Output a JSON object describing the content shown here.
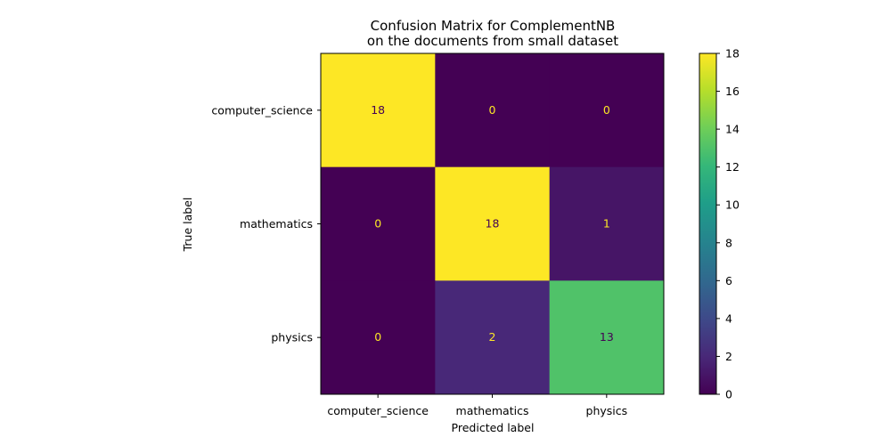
{
  "chart_data": {
    "type": "heatmap",
    "title_lines": [
      "Confusion Matrix for ComplementNB",
      "on the documents from small dataset"
    ],
    "xlabel": "Predicted label",
    "ylabel": "True label",
    "x_categories": [
      "computer_science",
      "mathematics",
      "physics"
    ],
    "y_categories": [
      "computer_science",
      "mathematics",
      "physics"
    ],
    "matrix": [
      [
        18,
        0,
        0
      ],
      [
        0,
        18,
        1
      ],
      [
        0,
        2,
        13
      ]
    ],
    "colorbar": {
      "vmin": 0,
      "vmax": 18,
      "ticks": [
        "0",
        "2",
        "4",
        "6",
        "8",
        "10",
        "12",
        "14",
        "16",
        "18"
      ],
      "colormap": "viridis"
    },
    "label_colors": {
      "light": "#fde725",
      "dark": "#440154"
    }
  }
}
